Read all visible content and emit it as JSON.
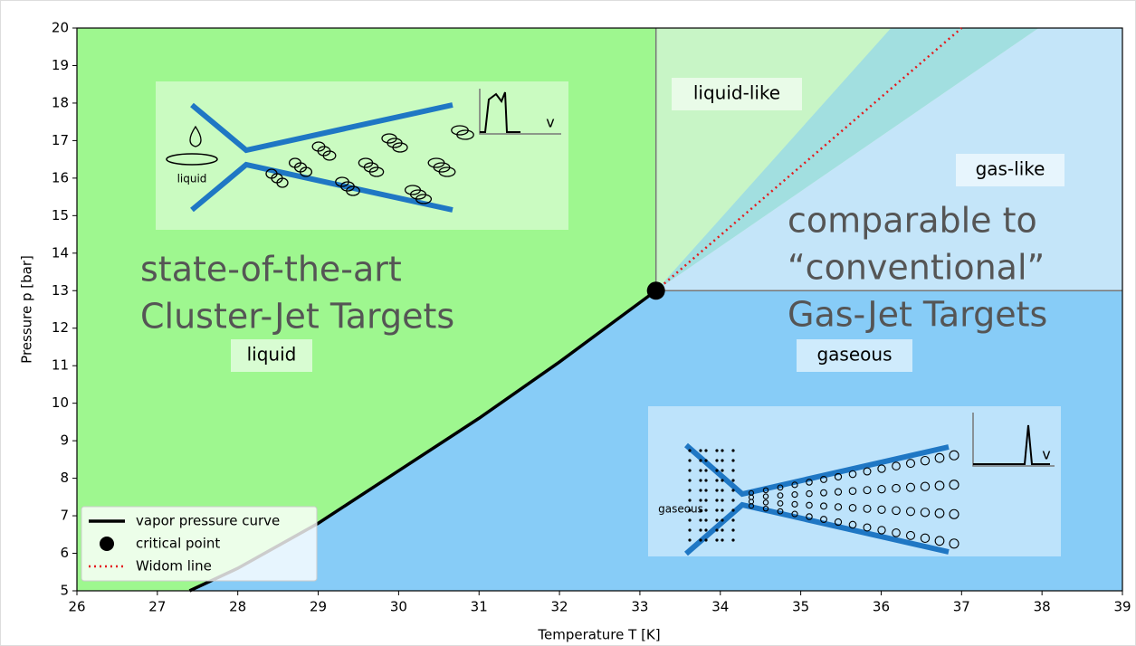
{
  "chart_data": {
    "type": "line",
    "xlabel": "Temperature T [K]",
    "ylabel": "Pressure p [bar]",
    "xlim": [
      26,
      39
    ],
    "ylim": [
      5,
      20
    ],
    "xticks": [
      26,
      27,
      28,
      29,
      30,
      31,
      32,
      33,
      34,
      35,
      36,
      37,
      38,
      39
    ],
    "yticks": [
      5,
      6,
      7,
      8,
      9,
      10,
      11,
      12,
      13,
      14,
      15,
      16,
      17,
      18,
      19,
      20
    ],
    "series": [
      {
        "name": "vapor pressure curve",
        "color": "#000000",
        "x": [
          27.4,
          28,
          29,
          30,
          31,
          32,
          33.2
        ],
        "values": [
          5.0,
          5.6,
          6.8,
          8.2,
          9.6,
          11.1,
          13.0
        ]
      },
      {
        "name": "critical point",
        "color": "#000000",
        "x": [
          33.2
        ],
        "values": [
          13.0
        ]
      },
      {
        "name": "Widom line",
        "color": "#e41a1c",
        "x": [
          33.2,
          37.0
        ],
        "values": [
          13.0,
          20.0
        ]
      }
    ],
    "annotations": [
      "liquid-like",
      "gas-like",
      "liquid",
      "gaseous"
    ],
    "big_annotations": [
      [
        "state-of-the-art",
        "Cluster-Jet Targets"
      ],
      [
        "comparable to",
        "“conventional”",
        "Gas-Jet Targets"
      ]
    ],
    "insets": [
      {
        "label": "liquid",
        "axis_label": "v"
      },
      {
        "label": "gaseous",
        "axis_label": "v"
      }
    ],
    "legend": "lower left"
  }
}
